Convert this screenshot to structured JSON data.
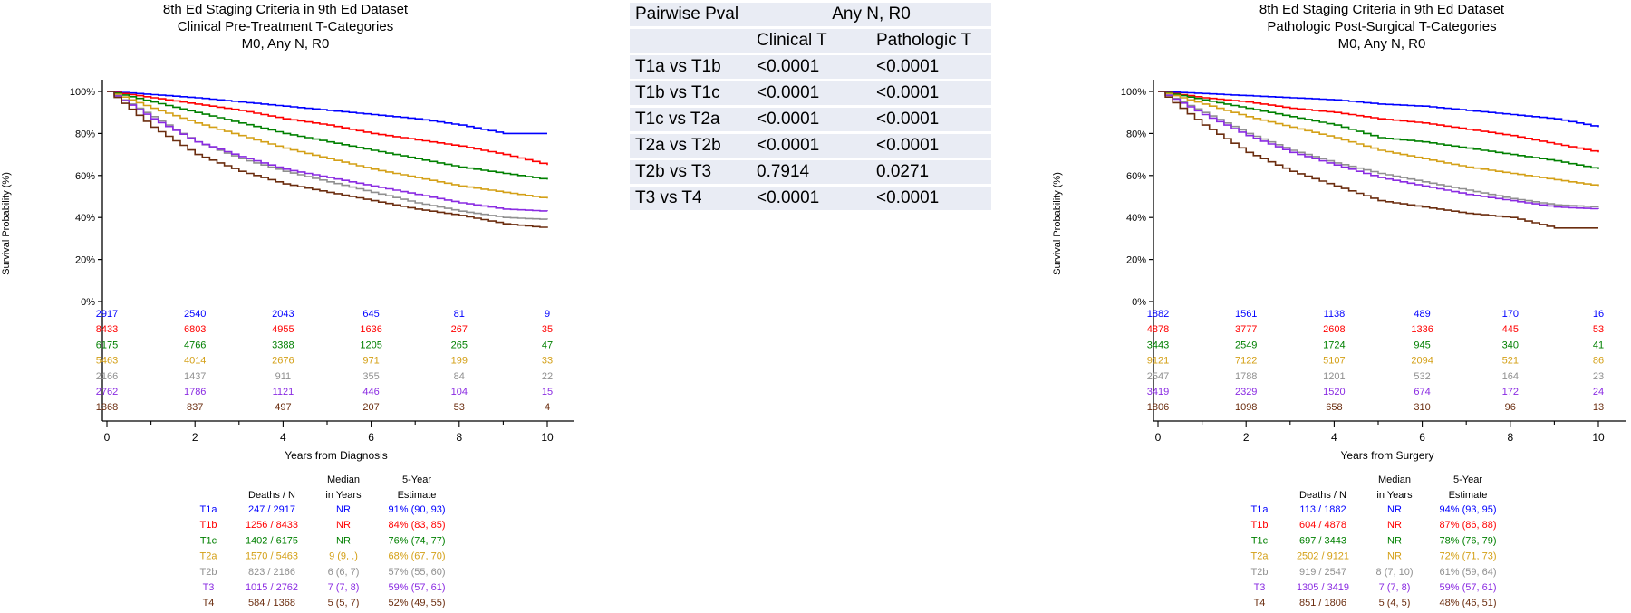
{
  "panels": [
    {
      "title": [
        "8th Ed Staging Criteria in 9th Ed Dataset",
        "Clinical Pre-Treatment T-Categories",
        "M0, Any N, R0"
      ],
      "ylabel": "Survival Probability (%)",
      "xlabel": "Years from Diagnosis",
      "stats_headers": {
        "deaths_top": "",
        "deaths": "Deaths / N",
        "median_top": "Median",
        "median": "in Years",
        "est_top": "5-Year",
        "est": "Estimate"
      },
      "stats": [
        {
          "group": "T1a",
          "deaths": "247 / 2917",
          "median": "NR",
          "est": "91% (90, 93)"
        },
        {
          "group": "T1b",
          "deaths": "1256 / 8433",
          "median": "NR",
          "est": "84% (83, 85)"
        },
        {
          "group": "T1c",
          "deaths": "1402 / 6175",
          "median": "NR",
          "est": "76% (74, 77)"
        },
        {
          "group": "T2a",
          "deaths": "1570 / 5463",
          "median": "9 (9, .)",
          "est": "68% (67, 70)"
        },
        {
          "group": "T2b",
          "deaths": "823 / 2166",
          "median": "6 (6, 7)",
          "est": "57% (55, 60)"
        },
        {
          "group": "T3",
          "deaths": "1015 / 2762",
          "median": "7 (7, 8)",
          "est": "59% (57, 61)"
        },
        {
          "group": "T4",
          "deaths": "584 / 1368",
          "median": "5 (5, 7)",
          "est": "52% (49, 55)"
        }
      ],
      "at_risk": [
        [
          "2917",
          "2540",
          "2043",
          "645",
          "81",
          "9"
        ],
        [
          "8433",
          "6803",
          "4955",
          "1636",
          "267",
          "35"
        ],
        [
          "6175",
          "4766",
          "3388",
          "1205",
          "265",
          "47"
        ],
        [
          "5463",
          "4014",
          "2676",
          "971",
          "199",
          "33"
        ],
        [
          "2166",
          "1437",
          "911",
          "355",
          "84",
          "22"
        ],
        [
          "2762",
          "1786",
          "1121",
          "446",
          "104",
          "15"
        ],
        [
          "1368",
          "837",
          "497",
          "207",
          "53",
          "4"
        ]
      ]
    },
    {
      "title": [
        "8th Ed Staging Criteria in 9th Ed Dataset",
        "Pathologic Post-Surgical T-Categories",
        "M0, Any N, R0"
      ],
      "ylabel": "Survival Probability (%)",
      "xlabel": "Years from Surgery",
      "stats_headers": {
        "deaths_top": "",
        "deaths": "Deaths / N",
        "median_top": "Median",
        "median": "in Years",
        "est_top": "5-Year",
        "est": "Estimate"
      },
      "stats": [
        {
          "group": "T1a",
          "deaths": "113 / 1882",
          "median": "NR",
          "est": "94% (93, 95)"
        },
        {
          "group": "T1b",
          "deaths": "604 / 4878",
          "median": "NR",
          "est": "87% (86, 88)"
        },
        {
          "group": "T1c",
          "deaths": "697 / 3443",
          "median": "NR",
          "est": "78% (76, 79)"
        },
        {
          "group": "T2a",
          "deaths": "2502 / 9121",
          "median": "NR",
          "est": "72% (71, 73)"
        },
        {
          "group": "T2b",
          "deaths": "919 / 2547",
          "median": "8 (7, 10)",
          "est": "61% (59, 64)"
        },
        {
          "group": "T3",
          "deaths": "1305 / 3419",
          "median": "7 (7, 8)",
          "est": "59% (57, 61)"
        },
        {
          "group": "T4",
          "deaths": "851 / 1806",
          "median": "5 (4, 5)",
          "est": "48% (46, 51)"
        }
      ],
      "at_risk": [
        [
          "1882",
          "1561",
          "1138",
          "489",
          "170",
          "16"
        ],
        [
          "4878",
          "3777",
          "2608",
          "1336",
          "445",
          "53"
        ],
        [
          "3443",
          "2549",
          "1724",
          "945",
          "340",
          "41"
        ],
        [
          "9121",
          "7122",
          "5107",
          "2094",
          "521",
          "86"
        ],
        [
          "2547",
          "1788",
          "1201",
          "532",
          "164",
          "23"
        ],
        [
          "3419",
          "2329",
          "1520",
          "674",
          "172",
          "24"
        ],
        [
          "1806",
          "1098",
          "658",
          "310",
          "96",
          "13"
        ]
      ]
    }
  ],
  "series_colors": [
    "#0000ff",
    "#ff0000",
    "#008000",
    "#d4a017",
    "#909090",
    "#8a2be2",
    "#6b2d0f"
  ],
  "pval_table": {
    "header_col1": "Pairwise Pval",
    "header_group": "Any N, R0",
    "sub_headers": [
      "Clinical T",
      "Pathologic T"
    ],
    "rows": [
      {
        "comparison": "T1a vs T1b",
        "clinical": "<0.0001",
        "pathologic": "<0.0001"
      },
      {
        "comparison": "T1b vs T1c",
        "clinical": "<0.0001",
        "pathologic": "<0.0001"
      },
      {
        "comparison": "T1c vs T2a",
        "clinical": "<0.0001",
        "pathologic": "<0.0001"
      },
      {
        "comparison": "T2a vs T2b",
        "clinical": "<0.0001",
        "pathologic": "<0.0001"
      },
      {
        "comparison": "T2b vs T3",
        "clinical": "0.7914",
        "pathologic": "0.0271"
      },
      {
        "comparison": "T3 vs T4",
        "clinical": "<0.0001",
        "pathologic": "<0.0001"
      }
    ]
  },
  "chart_data": [
    {
      "type": "line",
      "title": "8th Ed Staging Criteria in 9th Ed Dataset / Clinical Pre-Treatment T-Categories / M0, Any N, R0",
      "xlabel": "Years from Diagnosis",
      "ylabel": "Survival Probability (%)",
      "xlim": [
        0,
        10
      ],
      "ylim": [
        0,
        100
      ],
      "x_ticks": [
        0,
        2,
        4,
        6,
        8,
        10
      ],
      "y_ticks": [
        "0%",
        "20%",
        "40%",
        "60%",
        "80%",
        "100%"
      ],
      "grid": false,
      "x": [
        0,
        1,
        2,
        3,
        4,
        5,
        6,
        7,
        8,
        9,
        10
      ],
      "series": [
        {
          "name": "T1a",
          "values": [
            100,
            98.5,
            97,
            95,
            93,
            91,
            89,
            87,
            84,
            80,
            80
          ]
        },
        {
          "name": "T1b",
          "values": [
            100,
            97,
            94,
            91,
            87,
            84,
            80,
            77,
            74,
            70,
            65
          ]
        },
        {
          "name": "T1c",
          "values": [
            100,
            95,
            90,
            85,
            80,
            76,
            72,
            68,
            64,
            61,
            58
          ]
        },
        {
          "name": "T2a",
          "values": [
            100,
            92,
            85,
            79,
            73,
            68,
            63,
            59,
            55,
            52,
            49
          ]
        },
        {
          "name": "T2b",
          "values": [
            100,
            88,
            76,
            68,
            62,
            57,
            52,
            47,
            43,
            40,
            39
          ]
        },
        {
          "name": "T3",
          "values": [
            100,
            87,
            76,
            69,
            63,
            59,
            55,
            51,
            47,
            44,
            43
          ]
        },
        {
          "name": "T4",
          "values": [
            100,
            83,
            70,
            62,
            56,
            52,
            48,
            44,
            41,
            37,
            35
          ]
        }
      ]
    },
    {
      "type": "line",
      "title": "8th Ed Staging Criteria in 9th Ed Dataset / Pathologic Post-Surgical T-Categories / M0, Any N, R0",
      "xlabel": "Years from Surgery",
      "ylabel": "Survival Probability (%)",
      "xlim": [
        0,
        10
      ],
      "ylim": [
        0,
        100
      ],
      "x_ticks": [
        0,
        2,
        4,
        6,
        8,
        10
      ],
      "y_ticks": [
        "0%",
        "20%",
        "40%",
        "60%",
        "80%",
        "100%"
      ],
      "grid": false,
      "x": [
        0,
        1,
        2,
        3,
        4,
        5,
        6,
        7,
        8,
        9,
        10
      ],
      "series": [
        {
          "name": "T1a",
          "values": [
            100,
            99,
            98,
            97,
            96,
            94,
            93,
            91,
            89,
            87,
            83
          ]
        },
        {
          "name": "T1b",
          "values": [
            100,
            97,
            95,
            92,
            90,
            87,
            85,
            82,
            79,
            75,
            71
          ]
        },
        {
          "name": "T1c",
          "values": [
            100,
            96,
            92,
            88,
            84,
            78,
            76,
            73,
            70,
            67,
            63
          ]
        },
        {
          "name": "T2a",
          "values": [
            100,
            94,
            88,
            83,
            78,
            72,
            68,
            64,
            61,
            58,
            55
          ]
        },
        {
          "name": "T2b",
          "values": [
            100,
            90,
            80,
            72,
            66,
            61,
            57,
            53,
            49,
            46,
            45
          ]
        },
        {
          "name": "T3",
          "values": [
            100,
            89,
            79,
            71,
            65,
            59,
            55,
            51,
            48,
            45,
            44
          ]
        },
        {
          "name": "T4",
          "values": [
            100,
            84,
            71,
            62,
            55,
            48,
            45,
            42,
            40,
            35,
            35
          ]
        }
      ]
    }
  ]
}
